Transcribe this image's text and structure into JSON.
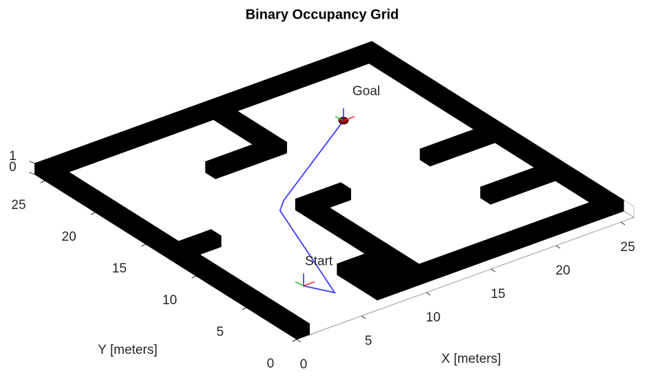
{
  "chart_data": {
    "type": "occupancy-3d",
    "title": "Binary Occupancy Grid",
    "xlabel": "X [meters]",
    "ylabel": "Y [meters]",
    "xlim": [
      0,
      26
    ],
    "ylim": [
      0,
      26
    ],
    "zlim": [
      0,
      1
    ],
    "xticks": [
      0,
      5,
      10,
      15,
      20,
      25
    ],
    "yticks": [
      0,
      5,
      10,
      15,
      20,
      25
    ],
    "zticks": [
      0,
      1
    ],
    "obstacle_color": "#000000",
    "obstacles": [
      {
        "x": [
          0,
          1
        ],
        "y": [
          0,
          26
        ]
      },
      {
        "x": [
          0,
          26
        ],
        "y": [
          25,
          26
        ]
      },
      {
        "x": [
          25,
          26
        ],
        "y": [
          1,
          26
        ]
      },
      {
        "x": [
          11,
          26
        ],
        "y": [
          1,
          2
        ]
      },
      {
        "x": [
          7,
          11
        ],
        "y": [
          1,
          5
        ]
      },
      {
        "x": [
          10,
          11
        ],
        "y": [
          5,
          13
        ]
      },
      {
        "x": [
          11,
          13.5
        ],
        "y": [
          12,
          13
        ]
      },
      {
        "x": [
          1,
          3.5
        ],
        "y": [
          12,
          13
        ]
      },
      {
        "x": [
          13,
          14
        ],
        "y": [
          19,
          25
        ]
      },
      {
        "x": [
          8.5,
          13
        ],
        "y": [
          19,
          20
        ]
      },
      {
        "x": [
          20,
          25
        ],
        "y": [
          12.5,
          13.5
        ]
      },
      {
        "x": [
          20,
          25
        ],
        "y": [
          6.5,
          7.5
        ]
      }
    ],
    "path": {
      "color": "#3b3bff",
      "x": [
        4.5,
        5.5,
        9.2,
        10.2,
        19.3
      ],
      "y": [
        5.1,
        3.3,
        13.5,
        14.4,
        20.2
      ]
    },
    "start": [
      4.5,
      5.1
    ],
    "goal": [
      19.3,
      20.2
    ],
    "start_label": "Start",
    "goal_label": "Goal"
  }
}
